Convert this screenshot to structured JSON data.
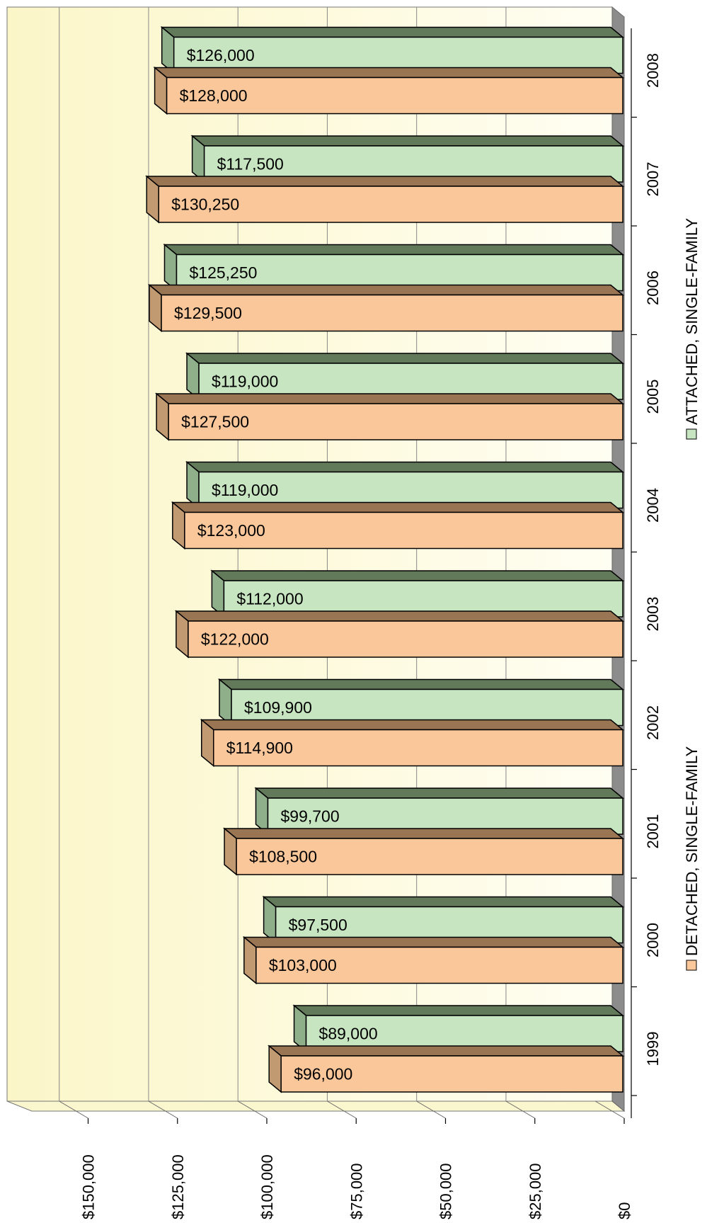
{
  "chart_data": {
    "type": "bar",
    "orientation": "horizontal-3d",
    "title": "",
    "categories": [
      "1999",
      "2000",
      "2001",
      "2002",
      "2003",
      "2004",
      "2005",
      "2006",
      "2007",
      "2008"
    ],
    "series": [
      {
        "name": "DETACHED, SINGLE-FAMILY",
        "color": "#f9c79a",
        "values": [
          96000,
          103000,
          108500,
          114900,
          122000,
          123000,
          127500,
          129500,
          130250,
          128000
        ],
        "labels": [
          "$96,000",
          "$103,000",
          "$108,500",
          "$114,900",
          "$122,000",
          "$123,000",
          "$127,500",
          "$129,500",
          "$130,250",
          "$128,000"
        ]
      },
      {
        "name": "ATTACHED, SINGLE-FAMILY",
        "color": "#c6e5c0",
        "values": [
          89000,
          97500,
          99700,
          109900,
          112000,
          119000,
          119000,
          125250,
          117500,
          126000
        ],
        "labels": [
          "$89,000",
          "$97,500",
          "$99,700",
          "$109,900",
          "$112,000",
          "$119,000",
          "$119,000",
          "$125,250",
          "$117,500",
          "$126,000"
        ]
      }
    ],
    "value_axis": {
      "min": 0,
      "max": 150000,
      "ticks": [
        0,
        25000,
        50000,
        75000,
        100000,
        125000,
        150000
      ],
      "tick_labels": [
        "$0",
        "$25,000",
        "$50,000",
        "$75,000",
        "$100,000",
        "$125,000",
        "$150,000"
      ]
    },
    "grid": true,
    "legend": "right",
    "colors": {
      "wall": "#fbf8d6",
      "floor": "#faf7cf",
      "side_wall": "#8c8c8c",
      "detached_top": "#9a7553",
      "detached_side": "#c29a72",
      "attached_top": "#637a5a",
      "attached_side": "#8fae8a",
      "outline": "#000000"
    }
  }
}
